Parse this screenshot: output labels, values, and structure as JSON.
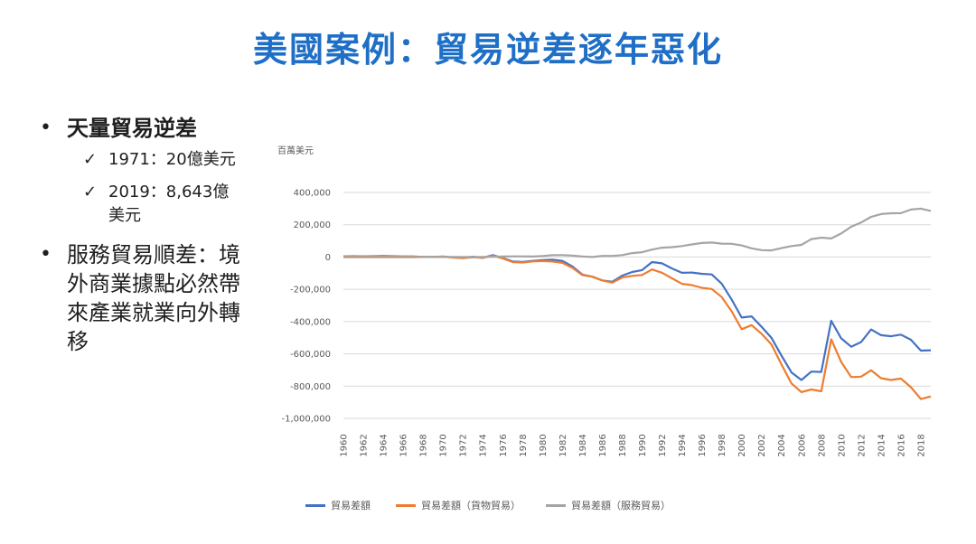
{
  "title": "美國案例：貿易逆差逐年惡化",
  "bullets": [
    {
      "text": "天量貿易逆差",
      "subs": [
        "1971：20億美元",
        "2019：8,643億美元"
      ]
    },
    {
      "text": "服務貿易順差：境外商業據點必然帶來產業就業向外轉移"
    }
  ],
  "icons": {
    "bullet": "•",
    "check": "✓"
  },
  "chart_data": {
    "type": "line",
    "ylabel": "百萬美元",
    "ylim": [
      -1000000,
      400000
    ],
    "yticks": [
      400000,
      200000,
      0,
      -200000,
      -400000,
      -600000,
      -800000,
      -1000000
    ],
    "ytick_labels": [
      "400,000",
      "200,000",
      "0",
      "-200,000",
      "-400,000",
      "-600,000",
      "-800,000",
      "-1,000,000"
    ],
    "x_tick_labels": [
      "1960",
      "1962",
      "1964",
      "1966",
      "1968",
      "1970",
      "1972",
      "1974",
      "1976",
      "1978",
      "1980",
      "1982",
      "1984",
      "1986",
      "1988",
      "1990",
      "1992",
      "1994",
      "1996",
      "1998",
      "2000",
      "2002",
      "2004",
      "2006",
      "2008",
      "2010",
      "2012",
      "2014",
      "2016",
      "2018"
    ],
    "x": [
      1960,
      1961,
      1962,
      1963,
      1964,
      1965,
      1966,
      1967,
      1968,
      1969,
      1970,
      1971,
      1972,
      1973,
      1974,
      1975,
      1976,
      1977,
      1978,
      1979,
      1980,
      1981,
      1982,
      1983,
      1984,
      1985,
      1986,
      1987,
      1988,
      1989,
      1990,
      1991,
      1992,
      1993,
      1994,
      1995,
      1996,
      1997,
      1998,
      1999,
      2000,
      2001,
      2002,
      2003,
      2004,
      2005,
      2006,
      2007,
      2008,
      2009,
      2010,
      2011,
      2012,
      2013,
      2014,
      2015,
      2016,
      2017,
      2018,
      2019
    ],
    "grid": true,
    "legend_position": "bottom",
    "series": [
      {
        "name": "貿易差額",
        "color": "#4472c4",
        "values": [
          4000,
          5000,
          4000,
          5000,
          7000,
          5000,
          3000,
          3000,
          1000,
          1000,
          3000,
          -2000,
          -6000,
          2000,
          -5000,
          12000,
          -6000,
          -27000,
          -30000,
          -24000,
          -19000,
          -16000,
          -24000,
          -58000,
          -109000,
          -122000,
          -145000,
          -153000,
          -115000,
          -93000,
          -81000,
          -31000,
          -39000,
          -71000,
          -98000,
          -96000,
          -104000,
          -108000,
          -165000,
          -264000,
          -375000,
          -368000,
          -432000,
          -501000,
          -610000,
          -715000,
          -762000,
          -710000,
          -712000,
          -395000,
          -504000,
          -556000,
          -527000,
          -449000,
          -484000,
          -491000,
          -481000,
          -513000,
          -580000,
          -578000
        ]
      },
      {
        "name": "貿易差額（貨物貿易）",
        "color": "#ed7d31",
        "values": [
          4000,
          4000,
          3000,
          4000,
          6000,
          4000,
          3000,
          3000,
          0,
          0,
          2000,
          -3000,
          -7000,
          -1000,
          -5000,
          8000,
          -9000,
          -31000,
          -34000,
          -27000,
          -25000,
          -28000,
          -36000,
          -67000,
          -112000,
          -122000,
          -145000,
          -159000,
          -127000,
          -117000,
          -111000,
          -77000,
          -97000,
          -132000,
          -166000,
          -174000,
          -191000,
          -198000,
          -248000,
          -337000,
          -447000,
          -422000,
          -475000,
          -542000,
          -665000,
          -783000,
          -837000,
          -821000,
          -832000,
          -510000,
          -650000,
          -744000,
          -741000,
          -702000,
          -751000,
          -762000,
          -753000,
          -807000,
          -880000,
          -864000
        ]
      },
      {
        "name": "貿易差額（服務貿易）",
        "color": "#a5a5a5",
        "values": [
          -1000,
          -1000,
          -1000,
          -1000,
          -1000,
          -1000,
          -1000,
          -1000,
          0,
          0,
          0,
          1000,
          0,
          1000,
          1000,
          2000,
          3000,
          4000,
          4000,
          3000,
          6000,
          12000,
          12000,
          9000,
          3000,
          0,
          7000,
          7000,
          12000,
          24000,
          30000,
          46000,
          58000,
          61000,
          68000,
          78000,
          87000,
          90000,
          83000,
          82000,
          72000,
          54000,
          43000,
          41000,
          55000,
          68000,
          75000,
          111000,
          120000,
          115000,
          146000,
          188000,
          214000,
          249000,
          266000,
          271000,
          272000,
          294000,
          300000,
          286000
        ]
      }
    ]
  }
}
